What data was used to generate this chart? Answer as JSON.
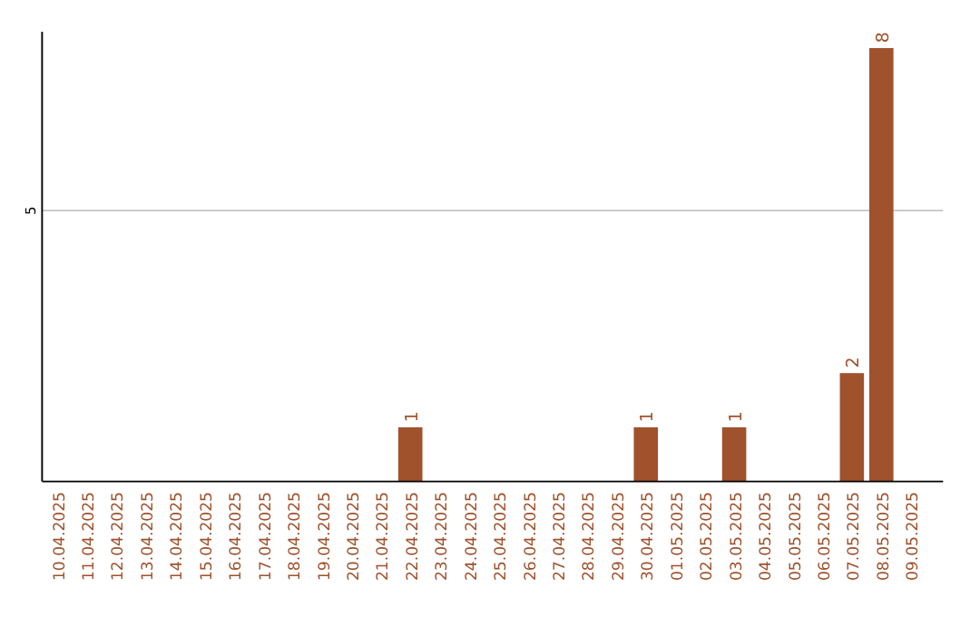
{
  "chart_data": {
    "type": "bar",
    "categories": [
      "10.04.2025",
      "11.04.2025",
      "12.04.2025",
      "13.04.2025",
      "14.04.2025",
      "15.04.2025",
      "16.04.2025",
      "17.04.2025",
      "18.04.2025",
      "19.04.2025",
      "20.04.2025",
      "21.04.2025",
      "22.04.2025",
      "23.04.2025",
      "24.04.2025",
      "25.04.2025",
      "26.04.2025",
      "27.04.2025",
      "28.04.2025",
      "29.04.2025",
      "30.04.2025",
      "01.05.2025",
      "02.05.2025",
      "03.05.2025",
      "04.05.2025",
      "05.05.2025",
      "06.05.2025",
      "07.05.2025",
      "08.05.2025",
      "09.05.2025"
    ],
    "values": [
      null,
      null,
      null,
      null,
      null,
      null,
      null,
      null,
      null,
      null,
      null,
      null,
      1,
      null,
      null,
      null,
      null,
      null,
      null,
      null,
      1,
      null,
      null,
      1,
      null,
      null,
      null,
      2,
      8,
      null
    ],
    "data_labels": true,
    "color": "#a0522d",
    "ylim": [
      0,
      8.3
    ],
    "yticks": [
      5
    ],
    "grid": "y"
  }
}
